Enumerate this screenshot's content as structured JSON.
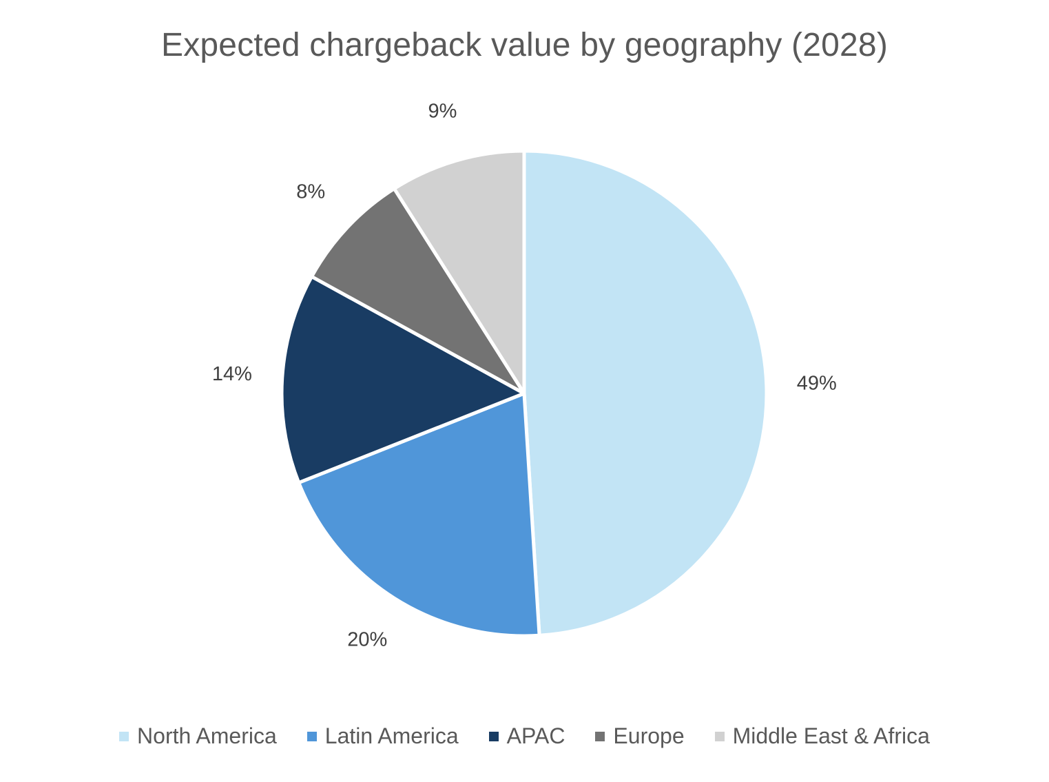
{
  "chart_data": {
    "type": "pie",
    "title": "Expected chargeback value by geography (2028)",
    "slices": [
      {
        "label": "North America",
        "value": 49,
        "data_label": "49%",
        "color": "#C2E4F5"
      },
      {
        "label": "Latin America",
        "value": 20,
        "data_label": "20%",
        "color": "#5096D9"
      },
      {
        "label": "APAC",
        "value": 14,
        "data_label": "14%",
        "color": "#193C63"
      },
      {
        "label": "Europe",
        "value": 8,
        "data_label": "8%",
        "color": "#737373"
      },
      {
        "label": "Middle East & Africa",
        "value": 9,
        "data_label": "9%",
        "color": "#D1D1D1"
      }
    ],
    "legend_position": "bottom",
    "start_angle_deg": 0,
    "direction": "clockwise"
  }
}
